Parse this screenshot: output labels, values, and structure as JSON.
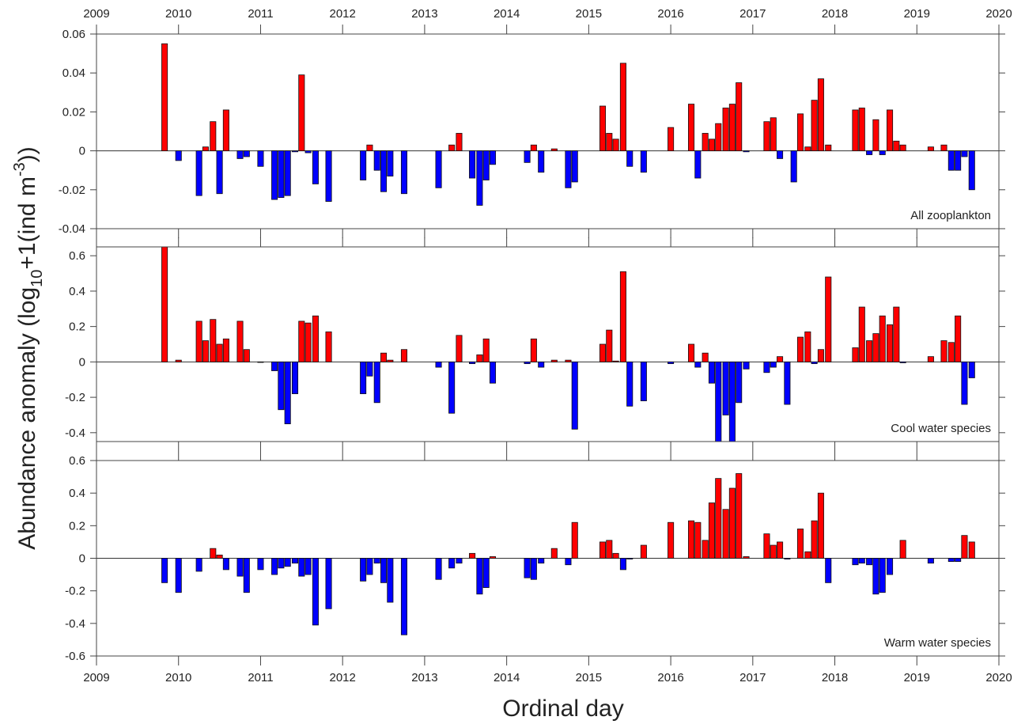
{
  "ylabel": [
    "Abundance anomaly (log",
    "10",
    "+1(ind m",
    "-3",
    "))"
  ],
  "xlabel": "Ordinal day",
  "chart_data": [
    {
      "type": "bar",
      "annotation": "All zooplankton",
      "x_tick_labels": "top",
      "positive_color": "#ff0000",
      "negative_color": "#0000ff",
      "xlim": [
        2009,
        2020
      ],
      "xticks": [
        2009,
        2010,
        2011,
        2012,
        2013,
        2014,
        2015,
        2016,
        2017,
        2018,
        2019,
        2020
      ],
      "ylim": [
        -0.04,
        0.06
      ],
      "yticks": [
        -0.04,
        -0.02,
        0,
        0.02,
        0.04,
        0.06
      ],
      "x": [
        2009.83,
        2010.0,
        2010.25,
        2010.33,
        2010.42,
        2010.5,
        2010.58,
        2010.75,
        2010.83,
        2011.0,
        2011.17,
        2011.25,
        2011.33,
        2011.42,
        2011.5,
        2011.58,
        2011.67,
        2011.83,
        2012.25,
        2012.33,
        2012.42,
        2012.5,
        2012.58,
        2012.75,
        2013.17,
        2013.33,
        2013.42,
        2013.58,
        2013.67,
        2013.75,
        2013.83,
        2014.25,
        2014.33,
        2014.42,
        2014.58,
        2014.75,
        2014.83,
        2015.17,
        2015.25,
        2015.33,
        2015.42,
        2015.5,
        2015.67,
        2016.0,
        2016.25,
        2016.33,
        2016.42,
        2016.5,
        2016.58,
        2016.67,
        2016.75,
        2016.83,
        2016.92,
        2017.17,
        2017.25,
        2017.33,
        2017.5,
        2017.58,
        2017.67,
        2017.75,
        2017.83,
        2017.92,
        2018.25,
        2018.33,
        2018.42,
        2018.5,
        2018.58,
        2018.67,
        2018.75,
        2018.83,
        2019.17,
        2019.33,
        2019.42,
        2019.5,
        2019.58,
        2019.67
      ],
      "values": [
        0.055,
        -0.005,
        -0.023,
        0.002,
        0.015,
        -0.022,
        0.021,
        -0.004,
        -0.003,
        -0.008,
        -0.025,
        -0.024,
        -0.023,
        -0.0005,
        0.039,
        -0.001,
        -0.017,
        -0.026,
        -0.015,
        0.003,
        -0.01,
        -0.021,
        -0.013,
        -0.022,
        -0.019,
        0.003,
        0.009,
        -0.014,
        -0.028,
        -0.015,
        -0.007,
        -0.006,
        0.003,
        -0.011,
        0.001,
        -0.019,
        -0.016,
        0.023,
        0.009,
        0.006,
        0.045,
        -0.008,
        -0.011,
        0.012,
        0.024,
        -0.014,
        0.009,
        0.006,
        0.014,
        0.022,
        0.024,
        0.035,
        -0.0005,
        0.015,
        0.017,
        -0.004,
        -0.016,
        0.019,
        0.002,
        0.026,
        0.037,
        0.003,
        0.021,
        0.022,
        -0.002,
        0.016,
        -0.002,
        0.021,
        0.005,
        0.003,
        0.002,
        0.003,
        -0.01,
        -0.01,
        -0.003,
        -0.02
      ]
    },
    {
      "type": "bar",
      "annotation": "Cool water species",
      "x_tick_labels": "none",
      "positive_color": "#ff0000",
      "negative_color": "#0000ff",
      "xlim": [
        2009,
        2020
      ],
      "xticks": [
        2009,
        2010,
        2011,
        2012,
        2013,
        2014,
        2015,
        2016,
        2017,
        2018,
        2019,
        2020
      ],
      "ylim": [
        -0.45,
        0.65
      ],
      "yticks": [
        -0.4,
        -0.2,
        0,
        0.2,
        0.4,
        0.6
      ],
      "x": [
        2009.83,
        2010.0,
        2010.25,
        2010.33,
        2010.42,
        2010.5,
        2010.58,
        2010.75,
        2010.83,
        2011.0,
        2011.17,
        2011.25,
        2011.33,
        2011.42,
        2011.5,
        2011.58,
        2011.67,
        2011.83,
        2012.25,
        2012.33,
        2012.42,
        2012.5,
        2012.58,
        2012.75,
        2013.17,
        2013.33,
        2013.42,
        2013.58,
        2013.67,
        2013.75,
        2013.83,
        2014.25,
        2014.33,
        2014.42,
        2014.58,
        2014.75,
        2014.83,
        2015.17,
        2015.25,
        2015.33,
        2015.42,
        2015.5,
        2015.67,
        2016.0,
        2016.25,
        2016.33,
        2016.42,
        2016.5,
        2016.58,
        2016.67,
        2016.75,
        2016.83,
        2016.92,
        2017.17,
        2017.25,
        2017.33,
        2017.42,
        2017.58,
        2017.67,
        2017.75,
        2017.83,
        2017.92,
        2018.25,
        2018.33,
        2018.42,
        2018.5,
        2018.58,
        2018.67,
        2018.75,
        2018.83,
        2019.17,
        2019.33,
        2019.42,
        2019.5,
        2019.58,
        2019.67
      ],
      "values": [
        0.65,
        0.01,
        0.23,
        0.12,
        0.24,
        0.1,
        0.13,
        0.23,
        0.07,
        -0.003,
        -0.05,
        -0.27,
        -0.35,
        -0.18,
        0.23,
        0.22,
        0.26,
        0.17,
        -0.18,
        -0.08,
        -0.23,
        0.05,
        0.01,
        0.07,
        -0.03,
        -0.29,
        0.15,
        -0.01,
        0.04,
        0.13,
        -0.12,
        -0.01,
        0.13,
        -0.03,
        0.01,
        0.01,
        -0.38,
        0.1,
        0.18,
        0.005,
        0.51,
        -0.25,
        -0.22,
        -0.01,
        0.1,
        -0.03,
        0.05,
        -0.12,
        -0.45,
        -0.3,
        -0.45,
        -0.23,
        -0.04,
        -0.06,
        -0.03,
        0.03,
        -0.24,
        0.14,
        0.17,
        -0.01,
        0.07,
        0.48,
        0.08,
        0.31,
        0.12,
        0.16,
        0.26,
        0.21,
        0.31,
        -0.005,
        0.03,
        0.12,
        0.11,
        0.26,
        -0.24,
        -0.09
      ]
    },
    {
      "type": "bar",
      "annotation": "Warm water species",
      "x_tick_labels": "bottom",
      "positive_color": "#ff0000",
      "negative_color": "#0000ff",
      "xlim": [
        2009,
        2020
      ],
      "xticks": [
        2009,
        2010,
        2011,
        2012,
        2013,
        2014,
        2015,
        2016,
        2017,
        2018,
        2019,
        2020
      ],
      "ylim": [
        -0.6,
        0.6
      ],
      "yticks": [
        -0.6,
        -0.4,
        -0.2,
        0,
        0.2,
        0.4,
        0.6
      ],
      "x": [
        2009.83,
        2010.0,
        2010.25,
        2010.42,
        2010.5,
        2010.58,
        2010.75,
        2010.83,
        2011.0,
        2011.17,
        2011.25,
        2011.33,
        2011.42,
        2011.5,
        2011.58,
        2011.67,
        2011.83,
        2012.25,
        2012.33,
        2012.42,
        2012.5,
        2012.58,
        2012.75,
        2013.17,
        2013.33,
        2013.42,
        2013.58,
        2013.67,
        2013.75,
        2013.83,
        2014.25,
        2014.33,
        2014.42,
        2014.58,
        2014.75,
        2014.83,
        2015.17,
        2015.25,
        2015.33,
        2015.42,
        2015.5,
        2015.67,
        2016.0,
        2016.25,
        2016.33,
        2016.42,
        2016.5,
        2016.58,
        2016.67,
        2016.75,
        2016.83,
        2016.92,
        2017.17,
        2017.25,
        2017.33,
        2017.42,
        2017.58,
        2017.67,
        2017.75,
        2017.83,
        2017.92,
        2018.25,
        2018.33,
        2018.42,
        2018.5,
        2018.58,
        2018.67,
        2018.83,
        2019.17,
        2019.42,
        2019.5,
        2019.58,
        2019.67
      ],
      "values": [
        -0.15,
        -0.21,
        -0.08,
        0.06,
        0.02,
        -0.07,
        -0.11,
        -0.21,
        -0.07,
        -0.1,
        -0.06,
        -0.05,
        -0.03,
        -0.11,
        -0.1,
        -0.41,
        -0.31,
        -0.14,
        -0.1,
        -0.03,
        -0.15,
        -0.27,
        -0.47,
        -0.13,
        -0.06,
        -0.03,
        0.03,
        -0.22,
        -0.18,
        0.01,
        -0.12,
        -0.13,
        -0.03,
        0.06,
        -0.04,
        0.22,
        0.1,
        0.11,
        0.03,
        -0.07,
        -0.005,
        0.08,
        0.22,
        0.23,
        0.22,
        0.11,
        0.34,
        0.49,
        0.3,
        0.43,
        0.52,
        0.01,
        0.15,
        0.08,
        0.1,
        -0.005,
        0.18,
        0.04,
        0.23,
        0.4,
        -0.15,
        -0.04,
        -0.03,
        -0.04,
        -0.22,
        -0.21,
        -0.1,
        0.11,
        -0.03,
        -0.02,
        -0.02,
        0.14,
        0.1
      ]
    }
  ]
}
